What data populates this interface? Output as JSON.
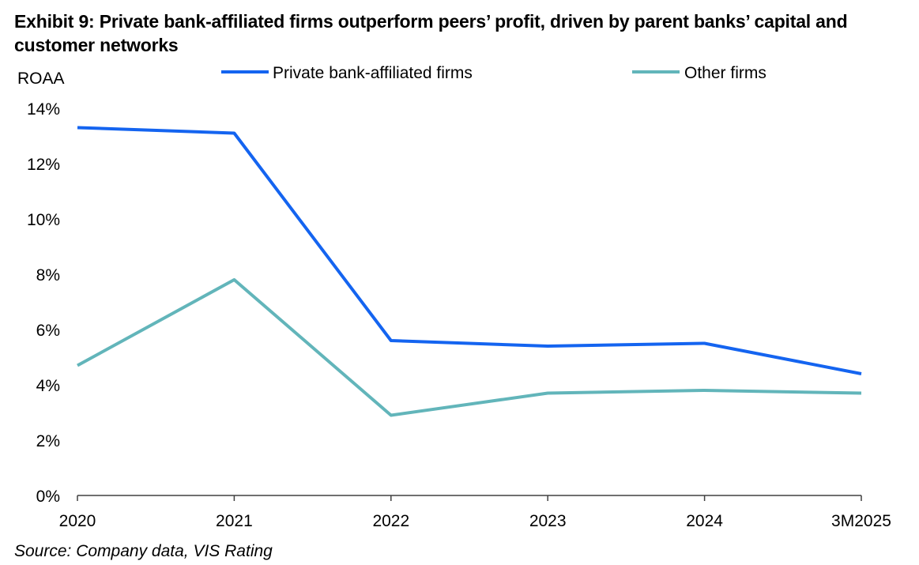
{
  "title": "Exhibit 9: Private bank-affiliated firms outperform peers’ profit, driven by parent banks’ capital and customer networks",
  "source": "Source: Company data, VIS Rating",
  "colors": {
    "private": "#1464F0",
    "other": "#62B5BA",
    "axis": "#404040"
  },
  "chart_data": {
    "type": "line",
    "ylabel": "ROAA",
    "xlabel": "",
    "categories": [
      "2020",
      "2021",
      "2022",
      "2023",
      "2024",
      "3M2025"
    ],
    "ylim": [
      0,
      14
    ],
    "yticks": [
      0,
      2,
      4,
      6,
      8,
      10,
      12,
      14
    ],
    "ytick_labels": [
      "0%",
      "2%",
      "4%",
      "6%",
      "8%",
      "10%",
      "12%",
      "14%"
    ],
    "grid": false,
    "legend": "top",
    "series": [
      {
        "name": "Private bank-affiliated firms",
        "values": [
          13.3,
          13.1,
          5.6,
          5.4,
          5.5,
          4.4
        ]
      },
      {
        "name": "Other firms",
        "values": [
          4.7,
          7.8,
          2.9,
          3.7,
          3.8,
          3.7
        ]
      }
    ]
  }
}
